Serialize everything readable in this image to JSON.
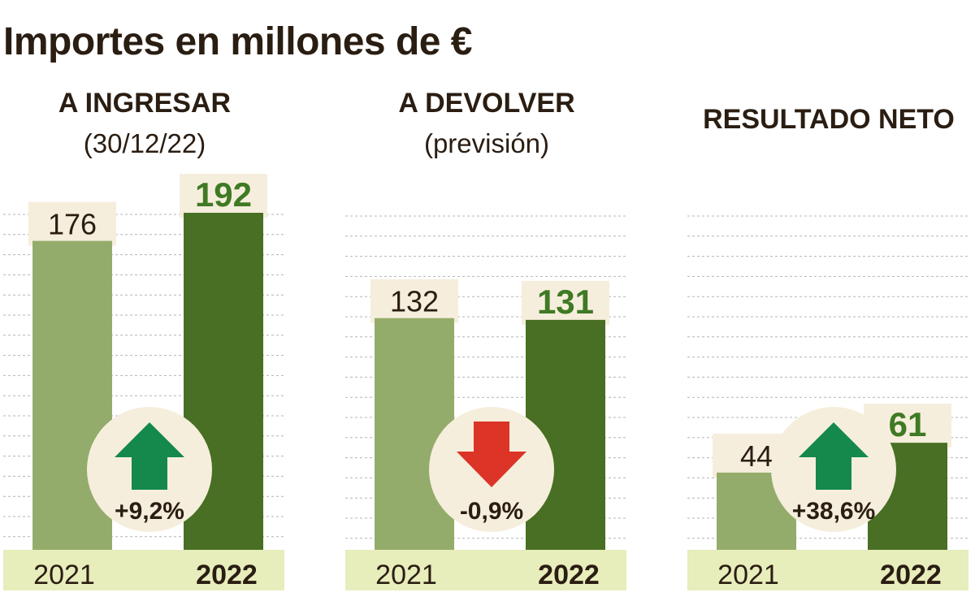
{
  "title": "Importes en millones de €",
  "colors": {
    "bar_2021": "#94ac6b",
    "bar_2022": "#486f24",
    "label_bg": "#f6eedc",
    "axis_band": "#e7edbb",
    "grid": "#b4b4b4",
    "up_arrow": "#14894b",
    "down_arrow": "#dc3427",
    "badge": "#f6eedc",
    "value_2022": "#3f7a24",
    "text": "#2a1d12"
  },
  "chart_data": [
    {
      "type": "bar",
      "title": "A INGRESAR",
      "subtitle": "(30/12/22)",
      "categories": [
        "2021",
        "2022"
      ],
      "values": [
        176,
        192
      ],
      "value_labels": [
        "176",
        "192"
      ],
      "change": {
        "label": "+9,2%",
        "direction": "up"
      },
      "ylim": [
        0,
        192
      ]
    },
    {
      "type": "bar",
      "title": "A DEVOLVER",
      "subtitle": "(previsión)",
      "categories": [
        "2021",
        "2022"
      ],
      "values": [
        132,
        131
      ],
      "value_labels": [
        "132",
        "131"
      ],
      "change": {
        "label": "-0,9%",
        "direction": "down"
      },
      "ylim": [
        0,
        192
      ]
    },
    {
      "type": "bar",
      "title": "RESULTADO NETO",
      "subtitle": "",
      "categories": [
        "2021",
        "2022"
      ],
      "values": [
        44,
        61
      ],
      "value_labels": [
        "44",
        "61"
      ],
      "change": {
        "label": "+38,6%",
        "direction": "up"
      },
      "ylim": [
        0,
        192
      ]
    }
  ]
}
